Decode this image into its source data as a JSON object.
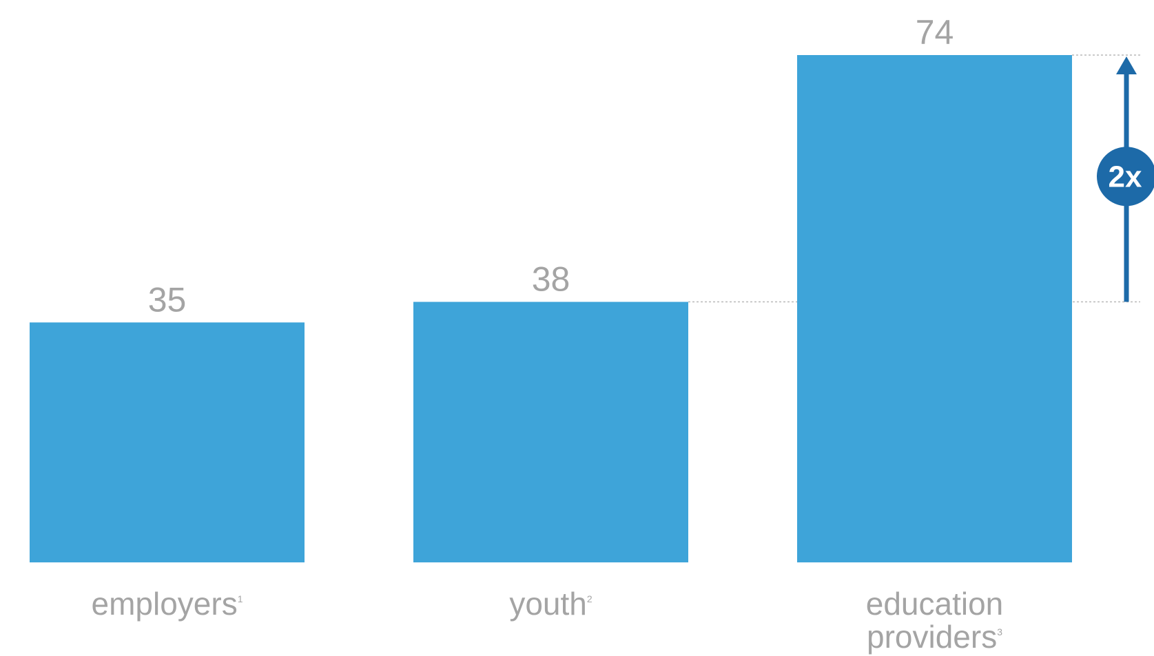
{
  "chart_data": {
    "type": "bar",
    "categories": [
      "employers",
      "youth",
      "education providers"
    ],
    "category_notes": [
      "1",
      "2",
      "3"
    ],
    "values": [
      35,
      38,
      74
    ],
    "data_labels": [
      "35",
      "38",
      "74"
    ],
    "bar_color": "#3ea4d9",
    "ylim": [
      0,
      80
    ],
    "annotation": {
      "label": "2x",
      "from_category": "youth",
      "to_category": "education providers",
      "color": "#1d6aa8"
    },
    "grid": false,
    "legend": "none"
  }
}
